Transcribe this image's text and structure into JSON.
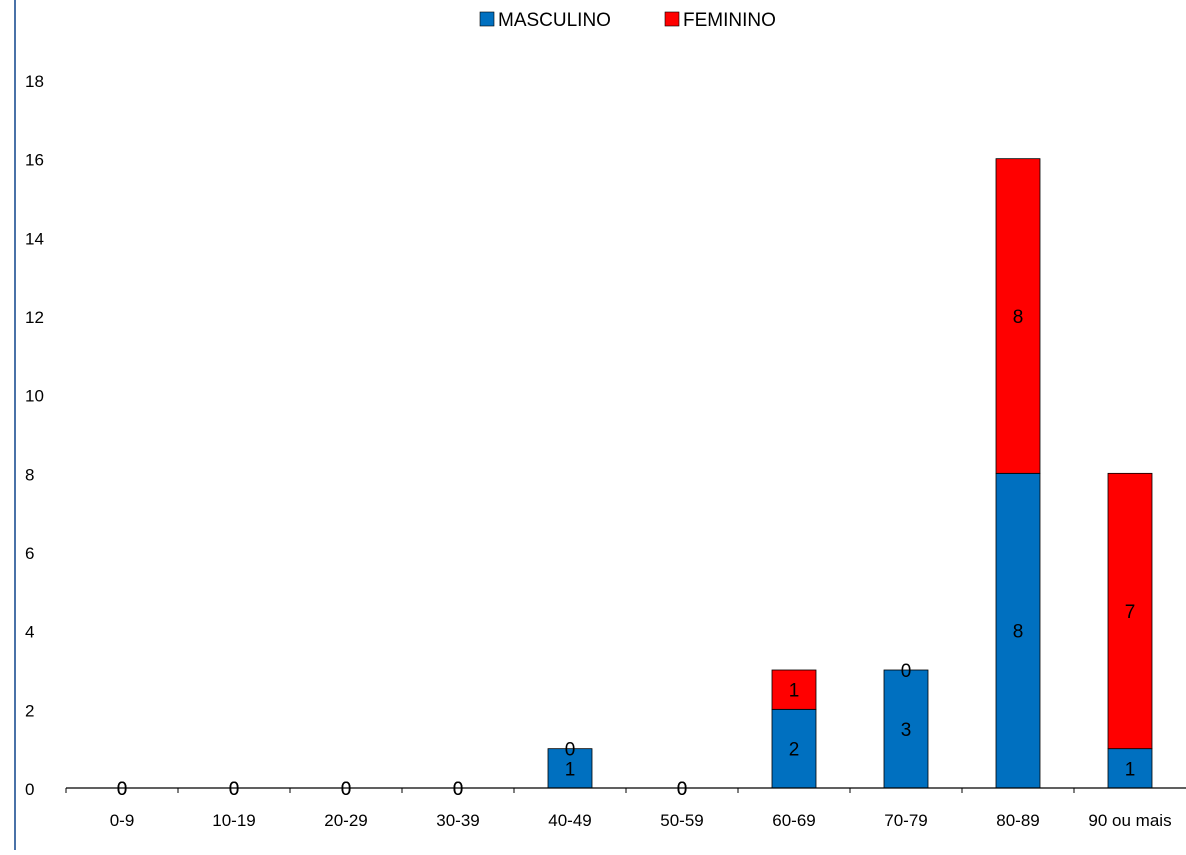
{
  "chart_data": {
    "type": "bar",
    "stacked": true,
    "categories": [
      "0-9",
      "10-19",
      "20-29",
      "30-39",
      "40-49",
      "50-59",
      "60-69",
      "70-79",
      "80-89",
      "90 ou mais"
    ],
    "series": [
      {
        "name": "MASCULINO",
        "color": "#0070c0",
        "values": [
          0,
          0,
          0,
          0,
          1,
          0,
          2,
          3,
          8,
          1
        ],
        "data_labels": [
          "0",
          "0",
          "0",
          "0",
          "1",
          "0",
          "2",
          "3",
          "8",
          "1"
        ]
      },
      {
        "name": "FEMININO",
        "color": "#ff0000",
        "values": [
          0,
          0,
          0,
          0,
          0,
          0,
          1,
          0,
          8,
          7
        ],
        "data_labels": [
          "0",
          "0",
          "0",
          "0",
          "0",
          "0",
          "1",
          "0",
          "8",
          "7"
        ]
      }
    ],
    "ylim": [
      0,
      18
    ],
    "yticks": [
      "0",
      "2",
      "4",
      "6",
      "8",
      "10",
      "12",
      "14",
      "16",
      "18"
    ],
    "title": "",
    "xlabel": "",
    "ylabel": "",
    "legend_position": "top-center",
    "grid": false
  }
}
